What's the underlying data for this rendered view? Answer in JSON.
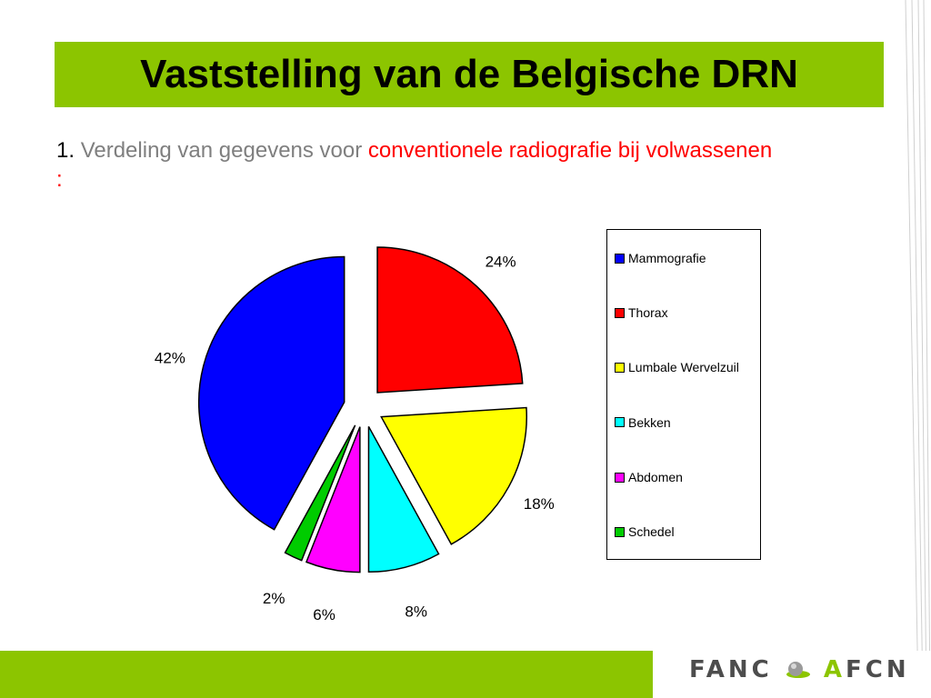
{
  "slide": {
    "title": "Vaststelling van de Belgische DRN",
    "subtitle": {
      "number": "1.",
      "grey_text": "Verdeling van gegevens voor",
      "red_text": "conventionele radiografie bij volwassenen :"
    }
  },
  "chart_data": {
    "type": "pie",
    "title": "",
    "categories": [
      "Mammografie",
      "Thorax",
      "Lumbale Wervelzuil",
      "Bekken",
      "Abdomen",
      "Schedel"
    ],
    "values": [
      42,
      24,
      18,
      8,
      6,
      2
    ],
    "value_labels": [
      "42%",
      "24%",
      "18%",
      "8%",
      "6%",
      "2%"
    ],
    "colors": [
      "#0000ff",
      "#ff0000",
      "#ffff00",
      "#00ffff",
      "#ff00ff",
      "#00cc00"
    ],
    "exploded": true,
    "legend_position": "right"
  },
  "logo": {
    "part1": "FANC",
    "part2": "A",
    "part3": "FCN"
  },
  "colors": {
    "accent_green": "#8cc500",
    "subtitle_grey": "#7f7f7f",
    "subtitle_red": "#ff0000"
  }
}
